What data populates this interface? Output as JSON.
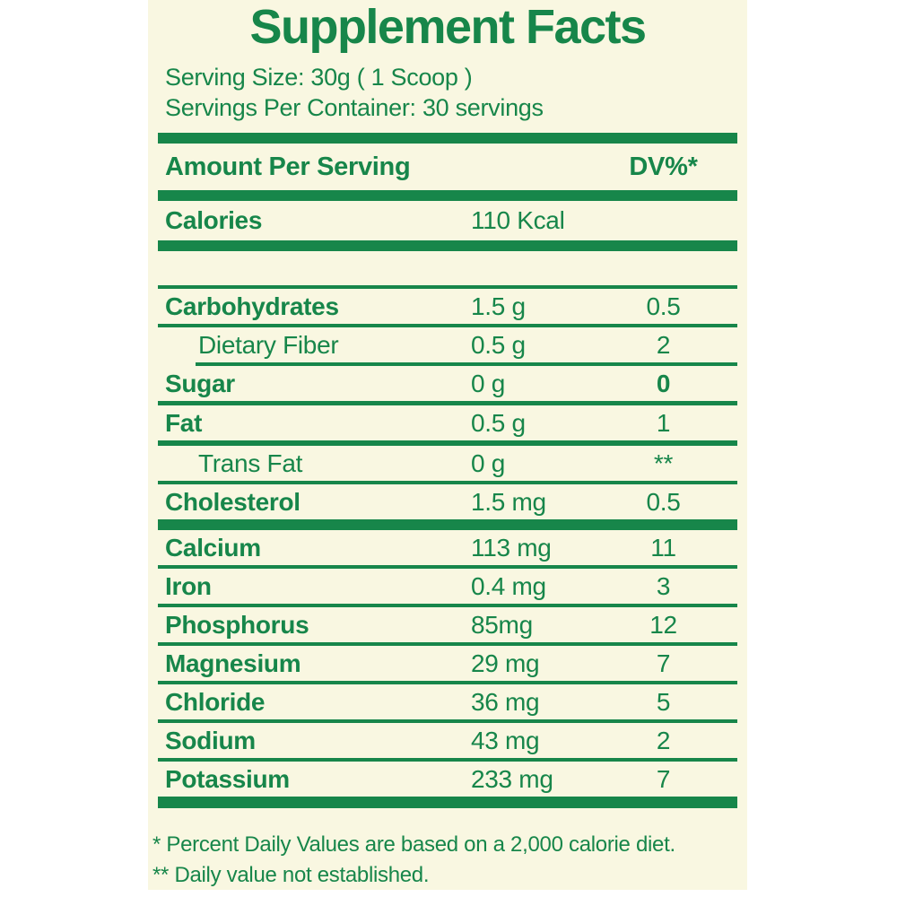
{
  "title": "Supplement Facts",
  "serving": {
    "size": "Serving Size: 30g ( 1 Scoop )",
    "per_container": "Servings Per Container: 30 servings"
  },
  "header": {
    "amount": "Amount Per Serving",
    "dv": "DV%*"
  },
  "calories": {
    "label": "Calories",
    "amount": "110 Kcal",
    "dv": ""
  },
  "nutrients": [
    {
      "name": "Carbohydrates",
      "amount": "1.5 g",
      "dv": "0.5",
      "bold": true,
      "indent": false,
      "dv_bold": false,
      "sep": "thin"
    },
    {
      "name": "Dietary Fiber",
      "amount": "0.5 g",
      "dv": "2",
      "bold": false,
      "indent": true,
      "dv_bold": false,
      "sep": "thin-indent"
    },
    {
      "name": "Sugar",
      "amount": "0 g",
      "dv": "0",
      "bold": true,
      "indent": false,
      "dv_bold": true,
      "sep": "medium"
    },
    {
      "name": "Fat",
      "amount": "0.5 g",
      "dv": "1",
      "bold": true,
      "indent": false,
      "dv_bold": false,
      "sep": "medium-2"
    },
    {
      "name": "Trans Fat",
      "amount": "0 g",
      "dv": "**",
      "bold": false,
      "indent": true,
      "dv_bold": false,
      "sep": "thin"
    },
    {
      "name": "Cholesterol",
      "amount": "1.5 mg",
      "dv": "0.5",
      "bold": true,
      "indent": false,
      "dv_bold": false,
      "sep": "thick"
    },
    {
      "name": "Calcium",
      "amount": "113 mg",
      "dv": "11",
      "bold": true,
      "indent": false,
      "dv_bold": false,
      "sep": "thin"
    },
    {
      "name": "Iron",
      "amount": "0.4 mg",
      "dv": "3",
      "bold": true,
      "indent": false,
      "dv_bold": false,
      "sep": "thin"
    },
    {
      "name": "Phosphorus",
      "amount": "85mg",
      "dv": "12",
      "bold": true,
      "indent": false,
      "dv_bold": false,
      "sep": "thin"
    },
    {
      "name": "Magnesium",
      "amount": "29 mg",
      "dv": "7",
      "bold": true,
      "indent": false,
      "dv_bold": false,
      "sep": "thin"
    },
    {
      "name": "Chloride",
      "amount": "36 mg",
      "dv": "5",
      "bold": true,
      "indent": false,
      "dv_bold": false,
      "sep": "thin"
    },
    {
      "name": "Sodium",
      "amount": "43 mg",
      "dv": "2",
      "bold": true,
      "indent": false,
      "dv_bold": false,
      "sep": "thin"
    },
    {
      "name": "Potassium",
      "amount": "233 mg",
      "dv": "7",
      "bold": true,
      "indent": false,
      "dv_bold": false,
      "sep": "none"
    }
  ],
  "footnotes": [
    "* Percent Daily Values are based on a 2,000 calorie diet.",
    "** Daily value not established."
  ],
  "colors": {
    "green": "#17864a",
    "label_background": "#f9f7e1",
    "page_background": "#ffffff"
  }
}
